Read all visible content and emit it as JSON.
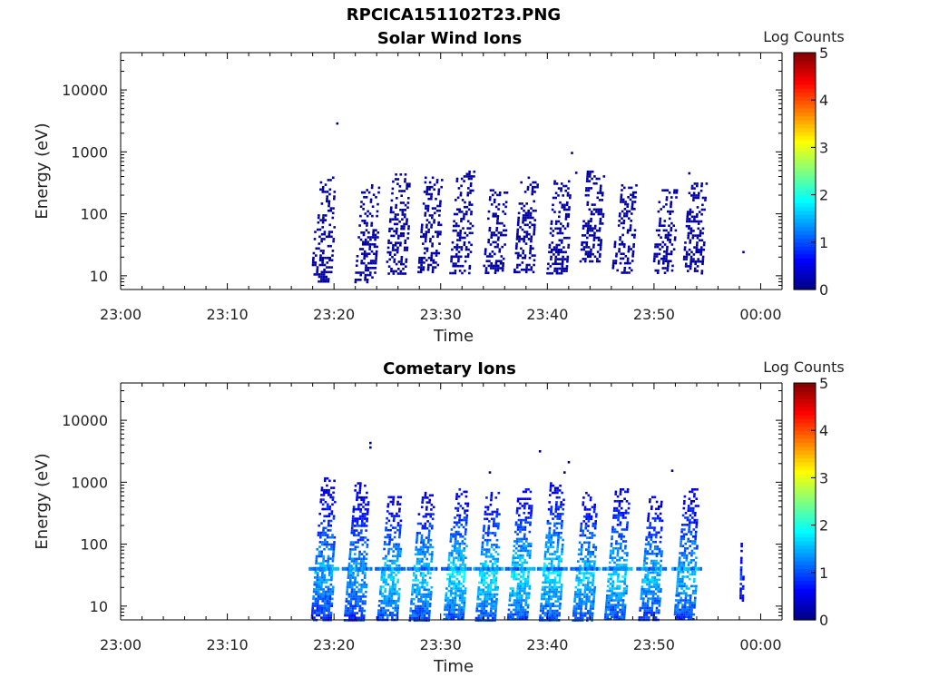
{
  "suptitle": "RPCICA151102T23.PNG",
  "colors": {
    "data_low": "#00008f",
    "colormap": "jet",
    "axis": "#000000"
  },
  "chart_data": [
    {
      "type": "heatmap",
      "title": "Solar Wind Ions",
      "xlabel": "Time",
      "ylabel": "Energy (eV)",
      "xticks": [
        "23:00",
        "23:10",
        "23:20",
        "23:30",
        "23:40",
        "23:50",
        "00:00"
      ],
      "xlim_minutes": [
        0,
        62
      ],
      "yscale": "log",
      "ylim": [
        6,
        40000
      ],
      "yticks": [
        10,
        100,
        1000,
        10000
      ],
      "ytick_labels": [
        "10",
        "100",
        "1000",
        "10000"
      ],
      "colorbar": {
        "label": "Log Counts",
        "min": 0,
        "max": 5,
        "ticks": [
          "0",
          "1",
          "2",
          "3",
          "4",
          "5"
        ]
      },
      "sweep_start_minutes": [
        17.8,
        21.9,
        24.8,
        27.8,
        30.8,
        33.9,
        36.8,
        39.9,
        43.0,
        46.0,
        49.8,
        52.6,
        58.0
      ],
      "sweep_max_energy_ev": [
        400,
        300,
        450,
        400,
        500,
        250,
        400,
        350,
        500,
        300,
        250,
        350,
        30
      ],
      "sweep_min_energy_ev": [
        8,
        8,
        11,
        11,
        11,
        11,
        11,
        11,
        17,
        11,
        11,
        11,
        20
      ],
      "sweep_level_log_counts": [
        0.2,
        0.2,
        0.2,
        0.2,
        0.2,
        0.2,
        0.2,
        0.2,
        0.2,
        0.2,
        0.2,
        0.2,
        0.2
      ]
    },
    {
      "type": "heatmap",
      "title": "Cometary Ions",
      "xlabel": "Time",
      "ylabel": "Energy (eV)",
      "xticks": [
        "23:00",
        "23:10",
        "23:20",
        "23:30",
        "23:40",
        "23:50",
        "00:00"
      ],
      "xlim_minutes": [
        0,
        62
      ],
      "yscale": "log",
      "ylim": [
        6,
        40000
      ],
      "yticks": [
        10,
        100,
        1000,
        10000
      ],
      "ytick_labels": [
        "10",
        "100",
        "1000",
        "10000"
      ],
      "colorbar": {
        "label": "Log Counts",
        "min": 0,
        "max": 5,
        "ticks": [
          "0",
          "1",
          "2",
          "3",
          "4",
          "5"
        ]
      },
      "sweep_start_minutes": [
        17.8,
        20.9,
        24.0,
        27.0,
        30.2,
        33.2,
        36.2,
        39.2,
        42.3,
        45.3,
        48.5,
        51.8,
        58.0
      ],
      "sweep_max_energy_ev": [
        1200,
        1000,
        600,
        700,
        800,
        700,
        800,
        1000,
        700,
        800,
        600,
        800,
        150
      ],
      "sweep_min_energy_ev": [
        6,
        6,
        6,
        6,
        6,
        6,
        6,
        6,
        6,
        6,
        6,
        6,
        12
      ],
      "sweep_level_log_counts": [
        1.3,
        1.3,
        1.5,
        1.5,
        1.6,
        1.6,
        1.6,
        1.6,
        1.5,
        1.5,
        1.4,
        1.4,
        0.8
      ]
    }
  ]
}
